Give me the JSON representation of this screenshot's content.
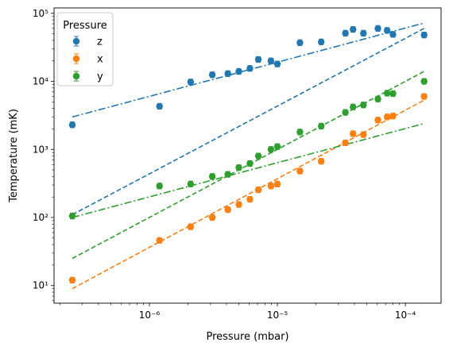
{
  "chart_data": {
    "type": "scatter",
    "title": "",
    "xlabel": "Pressure (mbar)",
    "ylabel": "Temperature (mK)",
    "xscale": "log",
    "yscale": "log",
    "xlim": [
      1.8e-07,
      0.00019
    ],
    "ylim": [
      5.5,
      120000
    ],
    "grid": false,
    "legend": {
      "title": "Pressure",
      "placement": "upper-left"
    },
    "x_ticks": [
      {
        "value": 1e-06,
        "label": "10⁻⁶"
      },
      {
        "value": 1e-05,
        "label": "10⁻⁵"
      },
      {
        "value": 0.0001,
        "label": "10⁻⁴"
      }
    ],
    "y_ticks": [
      {
        "value": 10,
        "label": "10¹"
      },
      {
        "value": 100,
        "label": "10²"
      },
      {
        "value": 1000,
        "label": "10³"
      },
      {
        "value": 10000,
        "label": "10⁴"
      },
      {
        "value": 100000,
        "label": "10⁵"
      }
    ],
    "series": [
      {
        "name": "z",
        "color": "#1f77b4",
        "x": [
          2.5e-07,
          1.2e-06,
          2.1e-06,
          3.1e-06,
          4.1e-06,
          5e-06,
          6.1e-06,
          7.1e-06,
          8.9e-06,
          1e-05,
          1.5e-05,
          2.2e-05,
          3.4e-05,
          3.9e-05,
          4.7e-05,
          6.1e-05,
          7.2e-05,
          8e-05,
          0.00014
        ],
        "y": [
          2300,
          4300,
          9800,
          12500,
          13000,
          14000,
          15500,
          21000,
          20000,
          18000,
          37000,
          38000,
          51000,
          58000,
          51000,
          60000,
          56000,
          49000,
          48000
        ],
        "fits": [
          {
            "style": "dashdot",
            "x": [
              2.5e-07,
              0.00014
            ],
            "y": [
              3000,
              72000
            ]
          },
          {
            "style": "dashed",
            "x": [
              2.5e-07,
              0.00014
            ],
            "y": [
              110,
              60000
            ]
          }
        ]
      },
      {
        "name": "x",
        "color": "#ff7f0e",
        "x": [
          2.5e-07,
          1.2e-06,
          2.1e-06,
          3.1e-06,
          4.1e-06,
          5e-06,
          6.1e-06,
          7.1e-06,
          8.9e-06,
          1e-05,
          1.5e-05,
          2.2e-05,
          3.4e-05,
          3.9e-05,
          4.7e-05,
          6.1e-05,
          7.2e-05,
          8e-05,
          0.00014
        ],
        "y": [
          12,
          46,
          73,
          100,
          130,
          155,
          185,
          255,
          290,
          310,
          480,
          670,
          1250,
          1700,
          1650,
          2700,
          3000,
          3100,
          6000
        ],
        "fits": [
          {
            "style": "dashed",
            "x": [
              2.5e-07,
              0.00014
            ],
            "y": [
              9,
              5300
            ]
          }
        ]
      },
      {
        "name": "y",
        "color": "#2ca02c",
        "x": [
          2.5e-07,
          1.2e-06,
          2.1e-06,
          3.1e-06,
          4.1e-06,
          5e-06,
          6.1e-06,
          7.1e-06,
          8.9e-06,
          1e-05,
          1.5e-05,
          2.2e-05,
          3.4e-05,
          3.9e-05,
          4.7e-05,
          6.1e-05,
          7.2e-05,
          8e-05,
          0.00014
        ],
        "y": [
          105,
          290,
          310,
          400,
          430,
          540,
          620,
          800,
          1000,
          1100,
          1800,
          2200,
          3500,
          4200,
          4500,
          5500,
          6700,
          6600,
          10000
        ],
        "fits": [
          {
            "style": "dashdot",
            "x": [
              2.5e-07,
              0.00014
            ],
            "y": [
              100,
              2400
            ]
          },
          {
            "style": "dashed",
            "x": [
              2.5e-07,
              0.00014
            ],
            "y": [
              25,
              14000
            ]
          }
        ]
      }
    ]
  }
}
